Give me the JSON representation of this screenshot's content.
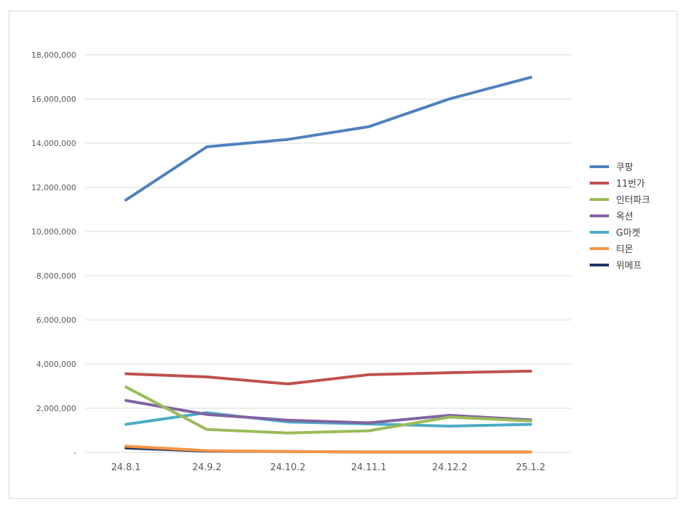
{
  "chart_data": {
    "type": "line",
    "categories": [
      "24.8.1",
      "24.9.2",
      "24.10.2",
      "24.11.1",
      "24.12.2",
      "25.1.2"
    ],
    "ylim": [
      0,
      18000000
    ],
    "yticks": [
      0,
      2000000,
      4000000,
      6000000,
      8000000,
      10000000,
      12000000,
      14000000,
      16000000,
      18000000
    ],
    "ytick_labels": [
      "-",
      "2,000,000",
      "4,000,000",
      "6,000,000",
      "8,000,000",
      "10,000,000",
      "12,000,000",
      "14,000,000",
      "16,000,000",
      "18,000,000"
    ],
    "grid": true,
    "legend_position": "right",
    "series": [
      {
        "name": "쿠팡",
        "color": "#4f81bd",
        "values": [
          11430000,
          13840000,
          14170000,
          14750000,
          16010000,
          16980000
        ]
      },
      {
        "name": "11번가",
        "color": "#c0504d",
        "values": [
          3560000,
          3420000,
          3100000,
          3520000,
          3610000,
          3680000
        ]
      },
      {
        "name": "인터파크",
        "color": "#9bbb59",
        "values": [
          2960000,
          1040000,
          880000,
          980000,
          1600000,
          1430000
        ]
      },
      {
        "name": "옥션",
        "color": "#8064a2",
        "values": [
          2350000,
          1720000,
          1460000,
          1340000,
          1680000,
          1470000
        ]
      },
      {
        "name": "G마켓",
        "color": "#4bacc6",
        "values": [
          1270000,
          1800000,
          1380000,
          1290000,
          1190000,
          1270000
        ]
      },
      {
        "name": "티몬",
        "color": "#f79646",
        "values": [
          280000,
          80000,
          40000,
          20000,
          20000,
          20000
        ]
      },
      {
        "name": "위메프",
        "color": "#1f3864",
        "values": [
          200000,
          60000,
          40000,
          20000,
          20000,
          20000
        ]
      }
    ]
  }
}
